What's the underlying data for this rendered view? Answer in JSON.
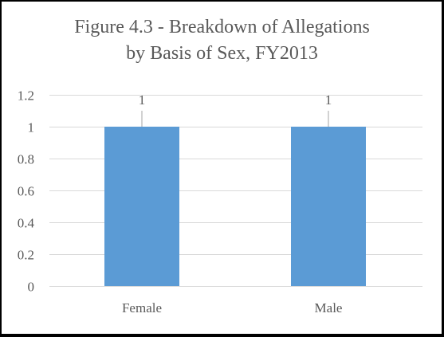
{
  "chart_data": {
    "type": "bar",
    "title_lines": [
      "Figure 4.3 - Breakdown of Allegations",
      "by Basis of Sex, FY2013"
    ],
    "categories": [
      "Female",
      "Male"
    ],
    "values": [
      1,
      1
    ],
    "data_labels": [
      "1",
      "1"
    ],
    "xlabel": "",
    "ylabel": "",
    "ylim": [
      0,
      1.2
    ],
    "y_ticks": [
      0,
      0.2,
      0.4,
      0.6,
      0.8,
      1,
      1.2
    ],
    "y_tick_labels": [
      "0",
      "0.2",
      "0.4",
      "0.6",
      "0.8",
      "1",
      "1.2"
    ],
    "grid": true,
    "legend": "none",
    "colors": {
      "bar": "#5B9BD5",
      "grid": "#D9D9D9",
      "text": "#595959",
      "leader_line": "#A6A6A6"
    }
  }
}
